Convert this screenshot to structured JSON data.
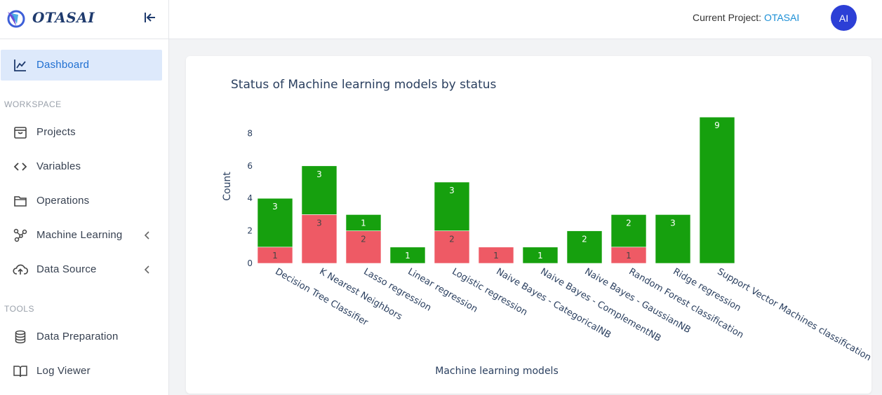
{
  "brand": {
    "name": "OTASAI"
  },
  "sidebar": {
    "items": [
      {
        "label": "Dashboard",
        "icon": "chart-line-icon",
        "active": true
      },
      {
        "label": "Projects",
        "icon": "archive-icon"
      },
      {
        "label": "Variables",
        "icon": "code-icon"
      },
      {
        "label": "Operations",
        "icon": "folder-icon"
      },
      {
        "label": "Machine Learning",
        "icon": "graph-nodes-icon",
        "expandable": true
      },
      {
        "label": "Data Source",
        "icon": "cloud-upload-icon",
        "expandable": true
      },
      {
        "label": "Data Preparation",
        "icon": "database-icon"
      },
      {
        "label": "Log Viewer",
        "icon": "book-icon"
      }
    ],
    "sections": {
      "workspace": "WORKSPACE",
      "tools": "TOOLS"
    }
  },
  "header": {
    "project_prefix": "Current Project: ",
    "project_name": "OTASAI",
    "avatar_initials": "AI"
  },
  "colors": {
    "accent": "#1f6fd1",
    "green": "#16a00e",
    "red": "#ee5a65",
    "avatar": "#2c3fd6"
  },
  "chart_data": {
    "type": "bar",
    "stacked": true,
    "title": "Status of Machine learning models by status",
    "xlabel": "Machine learning models",
    "ylabel": "Count",
    "ylim": [
      0,
      9
    ],
    "yticks": [
      0,
      2,
      4,
      6,
      8
    ],
    "categories": [
      "Decision Tree Classifier",
      "K Nearest Neighbors",
      "Lasso regression",
      "Linear regression",
      "Logistic regression",
      "Naive Bayes - CategoricalNB",
      "Naive Bayes - ComplementNB",
      "Naive Bayes - GaussianNB",
      "Random Forest classification",
      "Ridge regression",
      "Support Vector Machines classification"
    ],
    "series": [
      {
        "color": "#ee5a65",
        "values": [
          1,
          3,
          2,
          0,
          2,
          1,
          0,
          0,
          1,
          0,
          0
        ]
      },
      {
        "color": "#16a00e",
        "values": [
          3,
          3,
          1,
          1,
          3,
          0,
          1,
          2,
          2,
          3,
          9
        ]
      }
    ],
    "legend": "none",
    "grid": false
  }
}
